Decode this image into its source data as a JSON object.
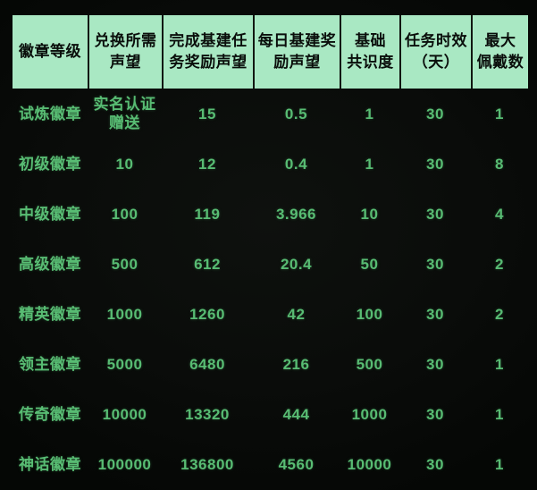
{
  "chart_data": {
    "type": "table",
    "title": "",
    "columns": [
      "徽章等级",
      "兑换所需声望",
      "完成基建任务奖励声望",
      "每日基建奖励声望",
      "基础共识度",
      "任务时效（天）",
      "最大佩戴数"
    ],
    "rows": [
      [
        "试炼徽章",
        "实名认证赠送",
        "15",
        "0.5",
        "1",
        "30",
        "1"
      ],
      [
        "初级徽章",
        "10",
        "12",
        "0.4",
        "1",
        "30",
        "8"
      ],
      [
        "中级徽章",
        "100",
        "119",
        "3.966",
        "10",
        "30",
        "4"
      ],
      [
        "高级徽章",
        "500",
        "612",
        "20.4",
        "50",
        "30",
        "2"
      ],
      [
        "精英徽章",
        "1000",
        "1260",
        "42",
        "100",
        "30",
        "2"
      ],
      [
        "领主徽章",
        "5000",
        "6480",
        "216",
        "500",
        "30",
        "1"
      ],
      [
        "传奇徽章",
        "10000",
        "13320",
        "444",
        "1000",
        "30",
        "1"
      ],
      [
        "神话徽章",
        "100000",
        "136800",
        "4560",
        "10000",
        "30",
        "1"
      ]
    ]
  },
  "colors": {
    "background": "#0a0c0a",
    "header_bg": "#a9e8c3",
    "header_text": "#0a0e0b",
    "body_text": "#58bc73",
    "divider": "#121711"
  },
  "table": {
    "headers": {
      "badge_level": "徽章等级",
      "exchange_reputation": "兑换所需\n声望",
      "infra_task_reward": "完成基建任\n务奖励声望",
      "daily_infra_reward": "每日基建奖\n励声望",
      "base_consensus": "基础\n共识度",
      "task_duration_days": "任务时效\n（天）",
      "max_wearable": "最大\n佩戴数"
    },
    "rows": [
      {
        "cells": [
          "试炼徽章",
          "实名认证\n赠送",
          "15",
          "0.5",
          "1",
          "30",
          "1"
        ]
      },
      {
        "cells": [
          "初级徽章",
          "10",
          "12",
          "0.4",
          "1",
          "30",
          "8"
        ]
      },
      {
        "cells": [
          "中级徽章",
          "100",
          "119",
          "3.966",
          "10",
          "30",
          "4"
        ]
      },
      {
        "cells": [
          "高级徽章",
          "500",
          "612",
          "20.4",
          "50",
          "30",
          "2"
        ]
      },
      {
        "cells": [
          "精英徽章",
          "1000",
          "1260",
          "42",
          "100",
          "30",
          "2"
        ]
      },
      {
        "cells": [
          "领主徽章",
          "5000",
          "6480",
          "216",
          "500",
          "30",
          "1"
        ]
      },
      {
        "cells": [
          "传奇徽章",
          "10000",
          "13320",
          "444",
          "1000",
          "30",
          "1"
        ]
      },
      {
        "cells": [
          "神话徽章",
          "100000",
          "136800",
          "4560",
          "10000",
          "30",
          "1"
        ]
      }
    ]
  }
}
